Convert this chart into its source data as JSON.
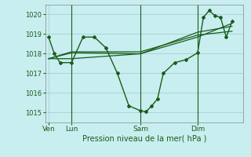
{
  "background_color": "#c8eef0",
  "grid_color": "#a0c8d0",
  "line_color": "#1a5c1a",
  "xlabel": "Pression niveau de la mer( hPa )",
  "ylim": [
    1014.5,
    1020.5
  ],
  "yticks": [
    1015,
    1016,
    1017,
    1018,
    1019,
    1020
  ],
  "xtick_labels": [
    "Ven",
    "Lun",
    "Sam",
    "Dim"
  ],
  "xtick_positions": [
    0,
    2,
    8,
    13
  ],
  "vline_positions": [
    2,
    8,
    13
  ],
  "xlim": [
    -0.3,
    17
  ],
  "series1_x": [
    0,
    0.5,
    1,
    2,
    3,
    4,
    5,
    6,
    7,
    8,
    8.5,
    9,
    9.5,
    10,
    11,
    12,
    13,
    13.5,
    14,
    14.5,
    15,
    15.5,
    16
  ],
  "series1_y": [
    1018.85,
    1018.0,
    1017.55,
    1017.55,
    1018.85,
    1018.85,
    1018.3,
    1017.0,
    1015.35,
    1015.1,
    1015.05,
    1015.35,
    1015.7,
    1017.0,
    1017.55,
    1017.7,
    1018.05,
    1019.85,
    1020.2,
    1019.95,
    1019.85,
    1018.85,
    1019.65
  ],
  "series2_x": [
    0,
    2,
    8,
    13,
    16
  ],
  "series2_y": [
    1017.75,
    1017.75,
    1018.0,
    1019.1,
    1019.4
  ],
  "series3_x": [
    0,
    2,
    8,
    13,
    16
  ],
  "series3_y": [
    1017.75,
    1018.1,
    1018.1,
    1018.95,
    1019.15
  ],
  "series4_x": [
    0,
    2,
    8,
    13,
    16
  ],
  "series4_y": [
    1017.75,
    1018.05,
    1018.0,
    1018.85,
    1019.55
  ]
}
